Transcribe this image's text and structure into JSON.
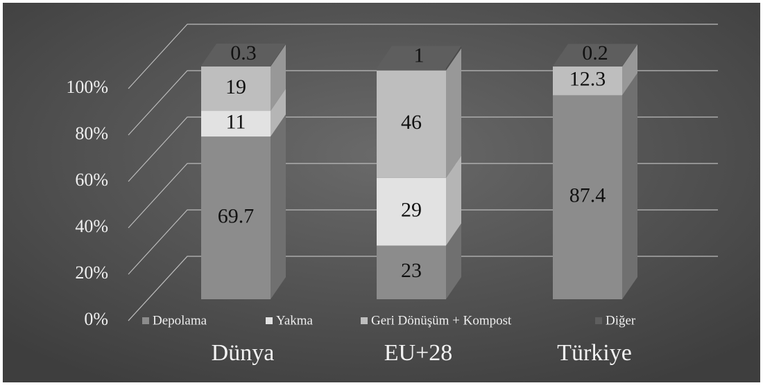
{
  "chart_data": {
    "type": "bar",
    "stacked": true,
    "categories": [
      "Dünya",
      "EU+28",
      "Türkiye"
    ],
    "series": [
      {
        "name": "Depolama",
        "color": "#8c8c8c",
        "values": [
          69.7,
          23,
          87.4
        ]
      },
      {
        "name": "Yakma",
        "color": "#e2e2e2",
        "values": [
          11,
          29,
          null
        ]
      },
      {
        "name": "Geri Dönüşüm + Kompost",
        "color": "#bebebe",
        "values": [
          19,
          46,
          12.3
        ]
      },
      {
        "name": "Diğer",
        "color": "#5e5e5e",
        "values": [
          0.3,
          1,
          0.2
        ]
      }
    ],
    "ylim": [
      0,
      100
    ],
    "yticks": [
      {
        "value": 0,
        "label": "0%"
      },
      {
        "value": 20,
        "label": "20%"
      },
      {
        "value": 40,
        "label": "40%"
      },
      {
        "value": 60,
        "label": "60%"
      },
      {
        "value": 80,
        "label": "80%"
      },
      {
        "value": 100,
        "label": "100%"
      }
    ],
    "grid": true,
    "legend": "bottom"
  }
}
